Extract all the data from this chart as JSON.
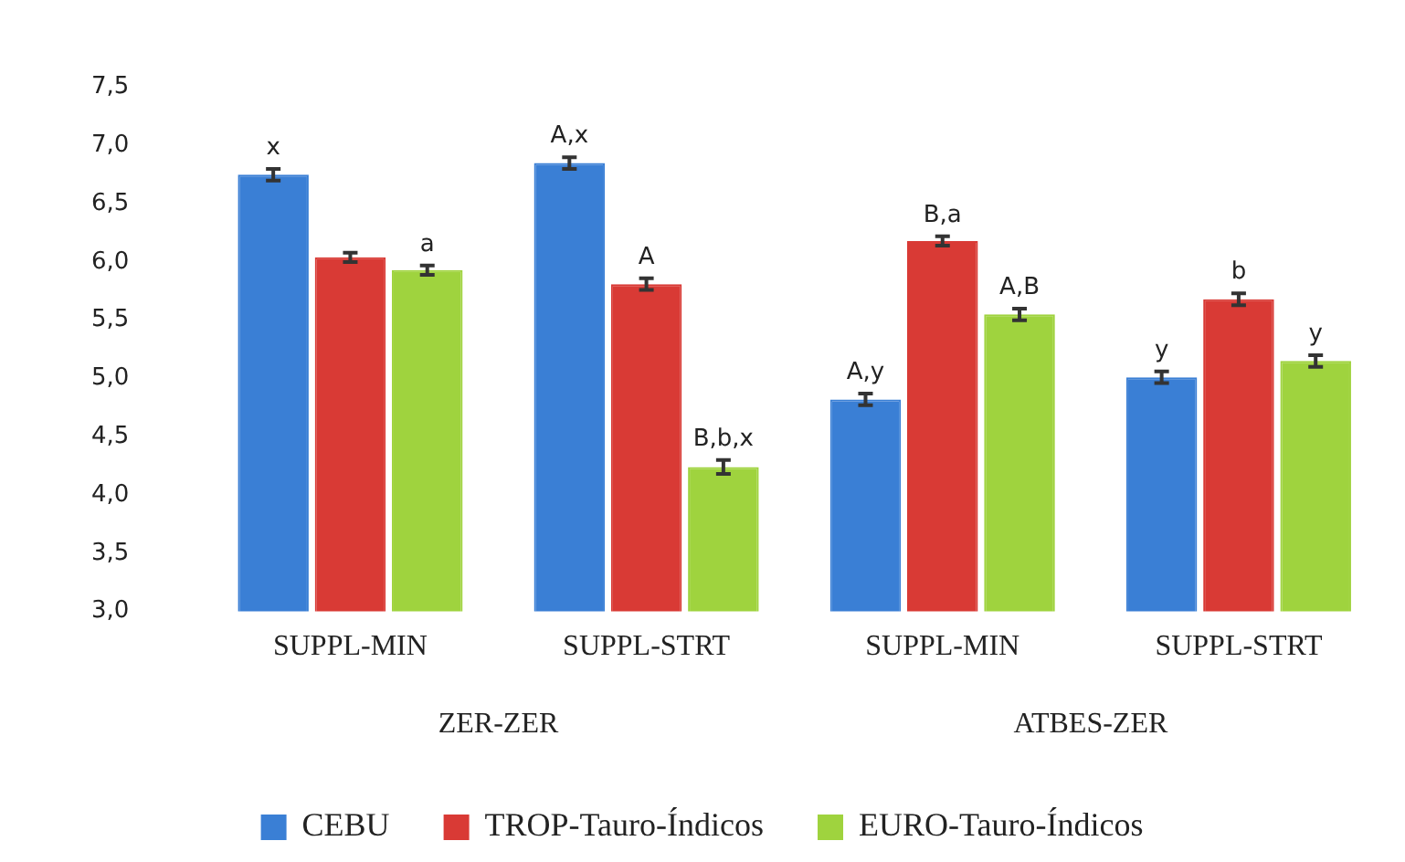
{
  "chart_data": {
    "type": "bar",
    "categories": [
      "SUPPL-MIN",
      "SUPPL-STRT",
      "SUPPL-MIN",
      "SUPPL-STRT"
    ],
    "series": [
      {
        "name": "CEBU",
        "color": "#3a7fd5",
        "values": [
          6.75,
          6.85,
          4.82,
          5.01
        ],
        "errors": [
          0.05,
          0.05,
          0.05,
          0.05
        ],
        "value_labels": [
          "x",
          "A,x",
          "A,y",
          "y"
        ]
      },
      {
        "name": "TROP-Tauro-Índicos",
        "color": "#d93a35",
        "values": [
          6.04,
          5.81,
          6.18,
          5.68
        ],
        "errors": [
          0.04,
          0.05,
          0.04,
          0.05
        ],
        "value_labels": [
          null,
          "A",
          "B,a",
          "b"
        ]
      },
      {
        "name": "EURO-Tauro-Índicos",
        "color": "#9fd33e",
        "values": [
          5.93,
          4.24,
          5.55,
          5.15
        ],
        "errors": [
          0.04,
          0.06,
          0.05,
          0.05
        ],
        "value_labels": [
          "a",
          "B,b,x",
          "A,B",
          "y"
        ]
      }
    ],
    "annotations": [
      "ZER-ZER",
      "ATBES-ZER"
    ],
    "ylim": [
      3.0,
      7.5
    ],
    "yticks": [
      {
        "value": 3.0,
        "label": "3,0"
      },
      {
        "value": 3.5,
        "label": "3,5"
      },
      {
        "value": 4.0,
        "label": "4,0"
      },
      {
        "value": 4.5,
        "label": "4,5"
      },
      {
        "value": 5.0,
        "label": "5,0"
      },
      {
        "value": 5.5,
        "label": "5,5"
      },
      {
        "value": 6.0,
        "label": "6,0"
      },
      {
        "value": 6.5,
        "label": "6,5"
      },
      {
        "value": 7.0,
        "label": "7,0"
      },
      {
        "value": 7.5,
        "label": "7,5"
      }
    ],
    "grid": false,
    "legend": "bottom"
  }
}
